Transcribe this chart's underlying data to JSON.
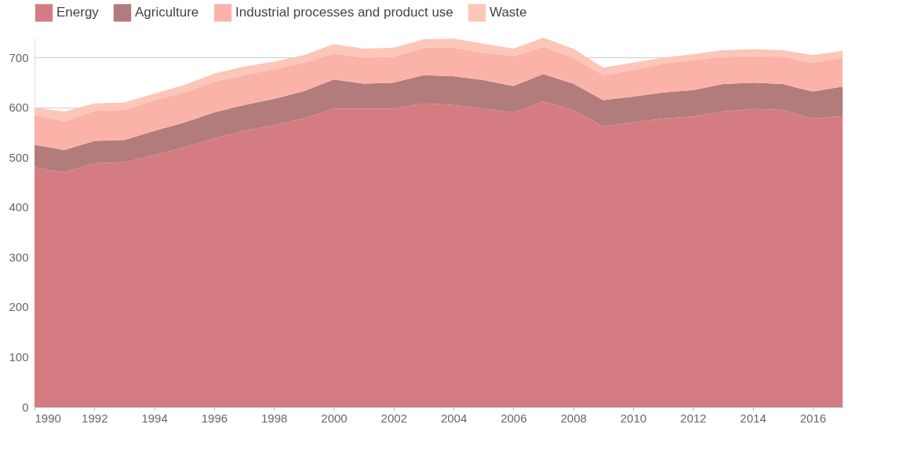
{
  "chart_data": {
    "type": "area",
    "stacked": true,
    "legend": "top left",
    "grid": "y",
    "x": [
      1990,
      1991,
      1992,
      1993,
      1994,
      1995,
      1996,
      1997,
      1998,
      1999,
      2000,
      2001,
      2002,
      2003,
      2004,
      2005,
      2006,
      2007,
      2008,
      2009,
      2010,
      2011,
      2012,
      2013,
      2014,
      2015,
      2016,
      2017
    ],
    "xlim": [
      1990,
      2017
    ],
    "xticks": [
      1990,
      1992,
      1994,
      1996,
      1998,
      2000,
      2002,
      2004,
      2006,
      2008,
      2010,
      2012,
      2014,
      2016
    ],
    "ylim": [
      0,
      740
    ],
    "yticks": [
      0,
      100,
      200,
      300,
      400,
      500,
      600,
      700
    ],
    "series": [
      {
        "name": "Energy",
        "color": "#d57c82",
        "values": [
          480,
          470,
          488,
          490,
          505,
          520,
          538,
          553,
          565,
          578,
          598,
          598,
          598,
          608,
          605,
          598,
          590,
          612,
          595,
          562,
          570,
          578,
          582,
          592,
          597,
          595,
          578,
          583
        ]
      },
      {
        "name": "Agriculture",
        "color": "#b37c7c",
        "values": [
          45,
          45,
          45,
          45,
          48,
          50,
          52,
          52,
          52,
          55,
          58,
          50,
          52,
          57,
          58,
          57,
          53,
          55,
          53,
          53,
          52,
          52,
          53,
          55,
          53,
          52,
          54,
          59
        ]
      },
      {
        "name": "Industrial processes and product use",
        "color": "#fbb3a9",
        "values": [
          60,
          57,
          60,
          60,
          62,
          60,
          62,
          60,
          60,
          57,
          52,
          52,
          52,
          55,
          57,
          55,
          60,
          55,
          52,
          50,
          53,
          58,
          60,
          55,
          53,
          55,
          58,
          58
        ]
      },
      {
        "name": "Waste",
        "color": "#fcc6b8",
        "values": [
          15,
          20,
          15,
          15,
          13,
          15,
          16,
          17,
          15,
          15,
          19,
          18,
          18,
          17,
          18,
          18,
          15,
          18,
          18,
          15,
          15,
          12,
          12,
          13,
          14,
          13,
          15,
          14
        ]
      }
    ]
  }
}
